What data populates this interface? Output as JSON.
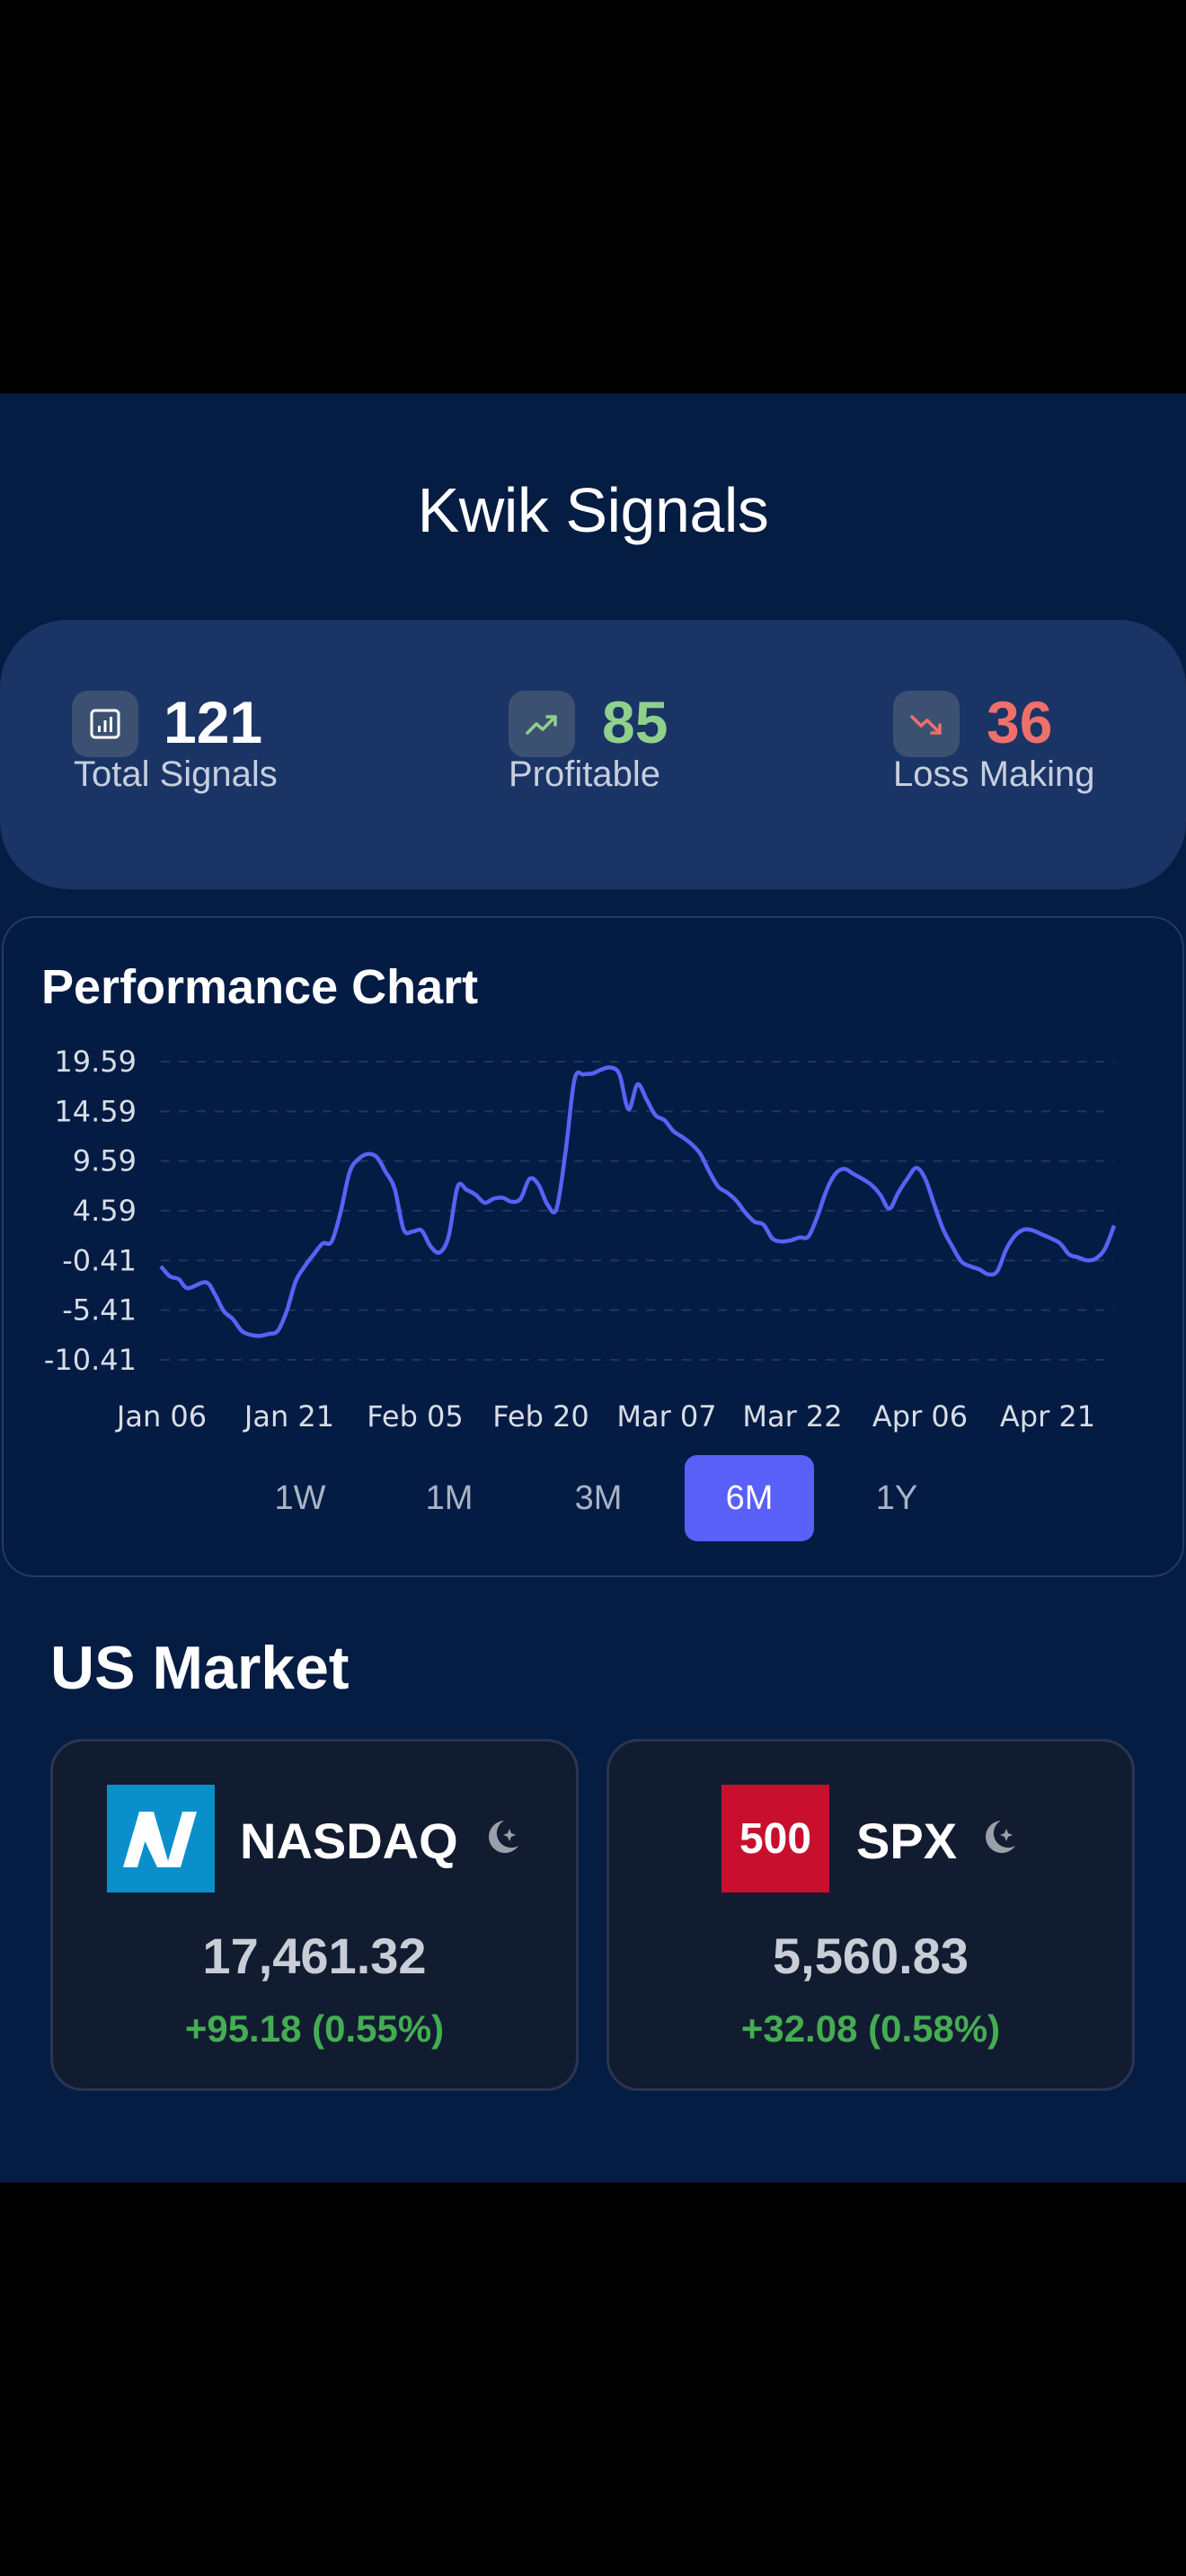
{
  "app": {
    "title": "Kwik Signals"
  },
  "stats": [
    {
      "value": "121",
      "label": "Total Signals",
      "icon": "bar-chart-icon",
      "color": "#ffffff"
    },
    {
      "value": "85",
      "label": "Profitable",
      "icon": "trending-up-icon",
      "color": "#8fd18a"
    },
    {
      "value": "36",
      "label": "Loss Making",
      "icon": "trending-down-icon",
      "color": "#ef6f6b"
    }
  ],
  "performance": {
    "title": "Performance Chart",
    "ranges": [
      "1W",
      "1M",
      "3M",
      "6M",
      "1Y"
    ],
    "active_range": "6M"
  },
  "chart_data": {
    "type": "line",
    "title": "Performance Chart",
    "xlabel": "",
    "ylabel": "",
    "y_ticks": [
      "19.59",
      "14.59",
      "9.59",
      "4.59",
      "-0.41",
      "-5.41",
      "-10.41"
    ],
    "ylim": [
      -10.41,
      19.59
    ],
    "x_ticks": [
      "Jan 06",
      "Jan 21",
      "Feb 05",
      "Feb 20",
      "Mar 07",
      "Mar 22",
      "Apr 06",
      "Apr 21"
    ],
    "grid": true,
    "line_color": "#5663f5",
    "series": [
      {
        "name": "",
        "points": [
          [
            0,
            -1.0
          ],
          [
            1,
            -2.0
          ],
          [
            2,
            -2.3
          ],
          [
            3,
            -3.2
          ],
          [
            5,
            -2.6
          ],
          [
            6,
            -3.8
          ],
          [
            7,
            -5.5
          ],
          [
            8,
            -6.3
          ],
          [
            9,
            -7.5
          ],
          [
            10,
            -7.9
          ],
          [
            11,
            -8.0
          ],
          [
            12,
            -7.8
          ],
          [
            13,
            -7.5
          ],
          [
            14,
            -5.5
          ],
          [
            15,
            -2.5
          ],
          [
            16,
            -1.0
          ],
          [
            17,
            0.2
          ],
          [
            18,
            1.3
          ],
          [
            19,
            1.5
          ],
          [
            20,
            4.5
          ],
          [
            21,
            8.5
          ],
          [
            22,
            9.8
          ],
          [
            23,
            10.3
          ],
          [
            24,
            10.0
          ],
          [
            25,
            8.5
          ],
          [
            26,
            6.8
          ],
          [
            27,
            2.7
          ],
          [
            28,
            2.5
          ],
          [
            29,
            2.6
          ],
          [
            30,
            1.0
          ],
          [
            31,
            0.4
          ],
          [
            32,
            2.0
          ],
          [
            33,
            7.0
          ],
          [
            34,
            6.7
          ],
          [
            35,
            6.2
          ],
          [
            36,
            5.4
          ],
          [
            37,
            5.8
          ],
          [
            38,
            5.9
          ],
          [
            39,
            5.5
          ],
          [
            40,
            5.8
          ],
          [
            41,
            7.8
          ],
          [
            42,
            7.2
          ],
          [
            43,
            5.2
          ],
          [
            44,
            4.8
          ],
          [
            45,
            10.5
          ],
          [
            46,
            17.8
          ],
          [
            47,
            18.3
          ],
          [
            48,
            18.4
          ],
          [
            49,
            18.8
          ],
          [
            50,
            19.0
          ],
          [
            51,
            18.3
          ],
          [
            52,
            14.8
          ],
          [
            53,
            17.3
          ],
          [
            54,
            15.8
          ],
          [
            55,
            14.2
          ],
          [
            56,
            13.7
          ],
          [
            57,
            12.6
          ],
          [
            58,
            12.0
          ],
          [
            59,
            11.3
          ],
          [
            60,
            10.3
          ],
          [
            61,
            8.5
          ],
          [
            62,
            7.0
          ],
          [
            63,
            6.4
          ],
          [
            64,
            5.6
          ],
          [
            65,
            4.4
          ],
          [
            66,
            3.5
          ],
          [
            67,
            3.2
          ],
          [
            68,
            1.8
          ],
          [
            69,
            1.5
          ],
          [
            70,
            1.6
          ],
          [
            71,
            1.9
          ],
          [
            72,
            2.0
          ],
          [
            73,
            4.0
          ],
          [
            74,
            6.6
          ],
          [
            75,
            8.3
          ],
          [
            76,
            8.8
          ],
          [
            77,
            8.3
          ],
          [
            78,
            7.8
          ],
          [
            79,
            7.2
          ],
          [
            80,
            6.2
          ],
          [
            81,
            4.8
          ],
          [
            82,
            6.4
          ],
          [
            83,
            7.8
          ],
          [
            84,
            8.9
          ],
          [
            85,
            7.8
          ],
          [
            86,
            5.2
          ],
          [
            87,
            2.7
          ],
          [
            88,
            1.0
          ],
          [
            89,
            -0.5
          ],
          [
            90,
            -1.0
          ],
          [
            91,
            -1.3
          ],
          [
            92,
            -1.8
          ],
          [
            93,
            -1.5
          ],
          [
            94,
            0.7
          ],
          [
            95,
            2.1
          ],
          [
            96,
            2.7
          ],
          [
            97,
            2.6
          ],
          [
            98,
            2.2
          ],
          [
            99,
            1.8
          ],
          [
            100,
            1.3
          ],
          [
            101,
            0.2
          ],
          [
            102,
            -0.1
          ],
          [
            103,
            -0.4
          ],
          [
            104,
            -0.2
          ],
          [
            105,
            0.8
          ],
          [
            106,
            3.1
          ]
        ]
      }
    ]
  },
  "market": {
    "title": "US Market",
    "tickers": [
      {
        "name": "NASDAQ",
        "logo": "nasdaq-logo",
        "logo_color": "#0a8fcb",
        "price": "17,461.32",
        "change": "+95.18 (0.55%)",
        "status_icon": "moon-icon"
      },
      {
        "name": "SPX",
        "logo": "spx-logo",
        "logo_text": "500",
        "logo_color": "#c8102e",
        "price": "5,560.83",
        "change": "+32.08 (0.58%)",
        "status_icon": "moon-icon"
      }
    ]
  }
}
